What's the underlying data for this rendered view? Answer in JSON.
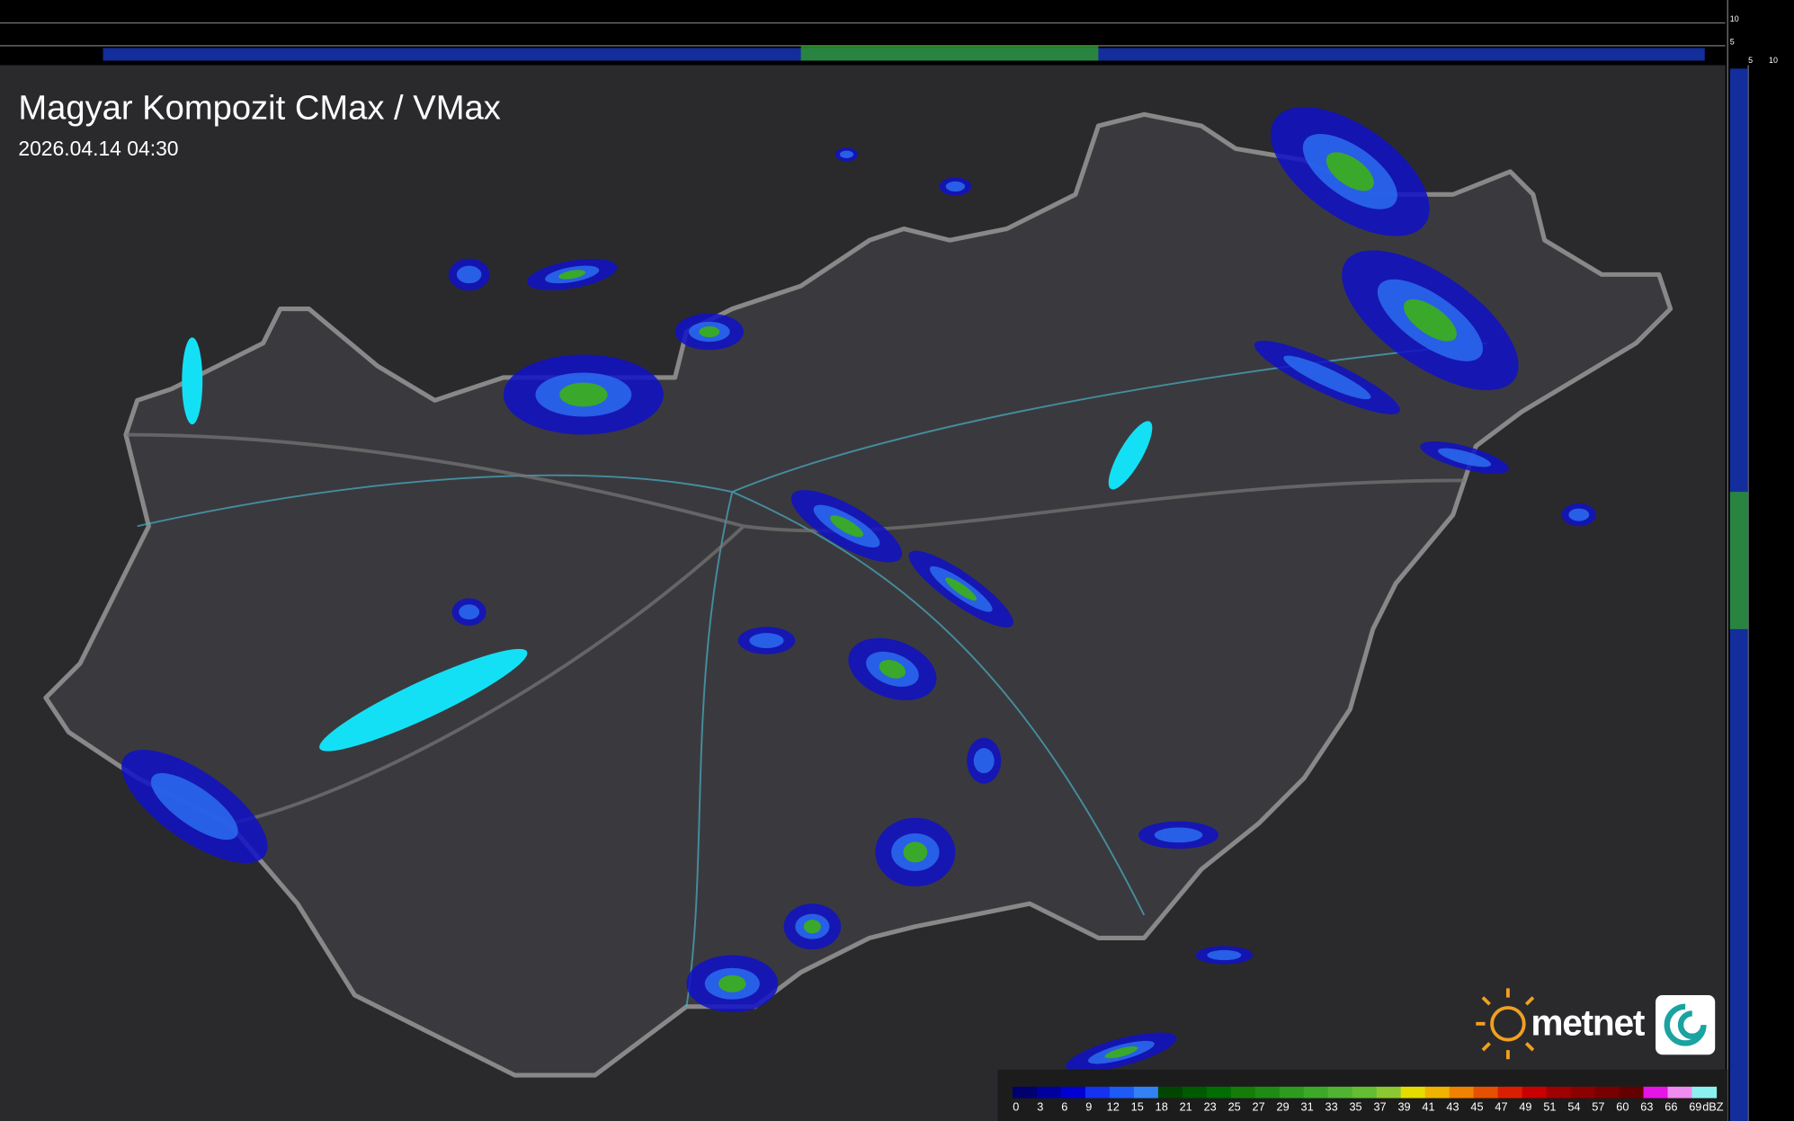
{
  "header": {
    "title": "Magyar Kompozit CMax / VMax",
    "timestamp": "2026.04.14 04:30"
  },
  "profile_scale": {
    "top": [
      "10",
      "5"
    ],
    "right": [
      "5",
      "10"
    ]
  },
  "legend": {
    "unit": "dBZ",
    "items": [
      {
        "label": "0",
        "color": "#00006e"
      },
      {
        "label": "3",
        "color": "#0000a0"
      },
      {
        "label": "6",
        "color": "#0000d2"
      },
      {
        "label": "9",
        "color": "#1432f0"
      },
      {
        "label": "12",
        "color": "#1e5af5"
      },
      {
        "label": "15",
        "color": "#3282f5"
      },
      {
        "label": "18",
        "color": "#004600"
      },
      {
        "label": "21",
        "color": "#005a00"
      },
      {
        "label": "23",
        "color": "#006e00"
      },
      {
        "label": "25",
        "color": "#147d0a"
      },
      {
        "label": "27",
        "color": "#1e8c14"
      },
      {
        "label": "29",
        "color": "#2d9b1e"
      },
      {
        "label": "31",
        "color": "#3caa28"
      },
      {
        "label": "33",
        "color": "#50b432"
      },
      {
        "label": "35",
        "color": "#64be32"
      },
      {
        "label": "37",
        "color": "#8cc832"
      },
      {
        "label": "39",
        "color": "#e6dc00"
      },
      {
        "label": "41",
        "color": "#f0b400"
      },
      {
        "label": "43",
        "color": "#f08200"
      },
      {
        "label": "45",
        "color": "#e65000"
      },
      {
        "label": "47",
        "color": "#dc1e00"
      },
      {
        "label": "49",
        "color": "#c80000"
      },
      {
        "label": "51",
        "color": "#a00000"
      },
      {
        "label": "54",
        "color": "#8c0000"
      },
      {
        "label": "57",
        "color": "#780000"
      },
      {
        "label": "60",
        "color": "#640000"
      },
      {
        "label": "63",
        "color": "#e614e6"
      },
      {
        "label": "66",
        "color": "#f08cf0"
      },
      {
        "label": "69",
        "color": "#8cf0f0"
      }
    ]
  },
  "logo": {
    "text": "metnet"
  }
}
